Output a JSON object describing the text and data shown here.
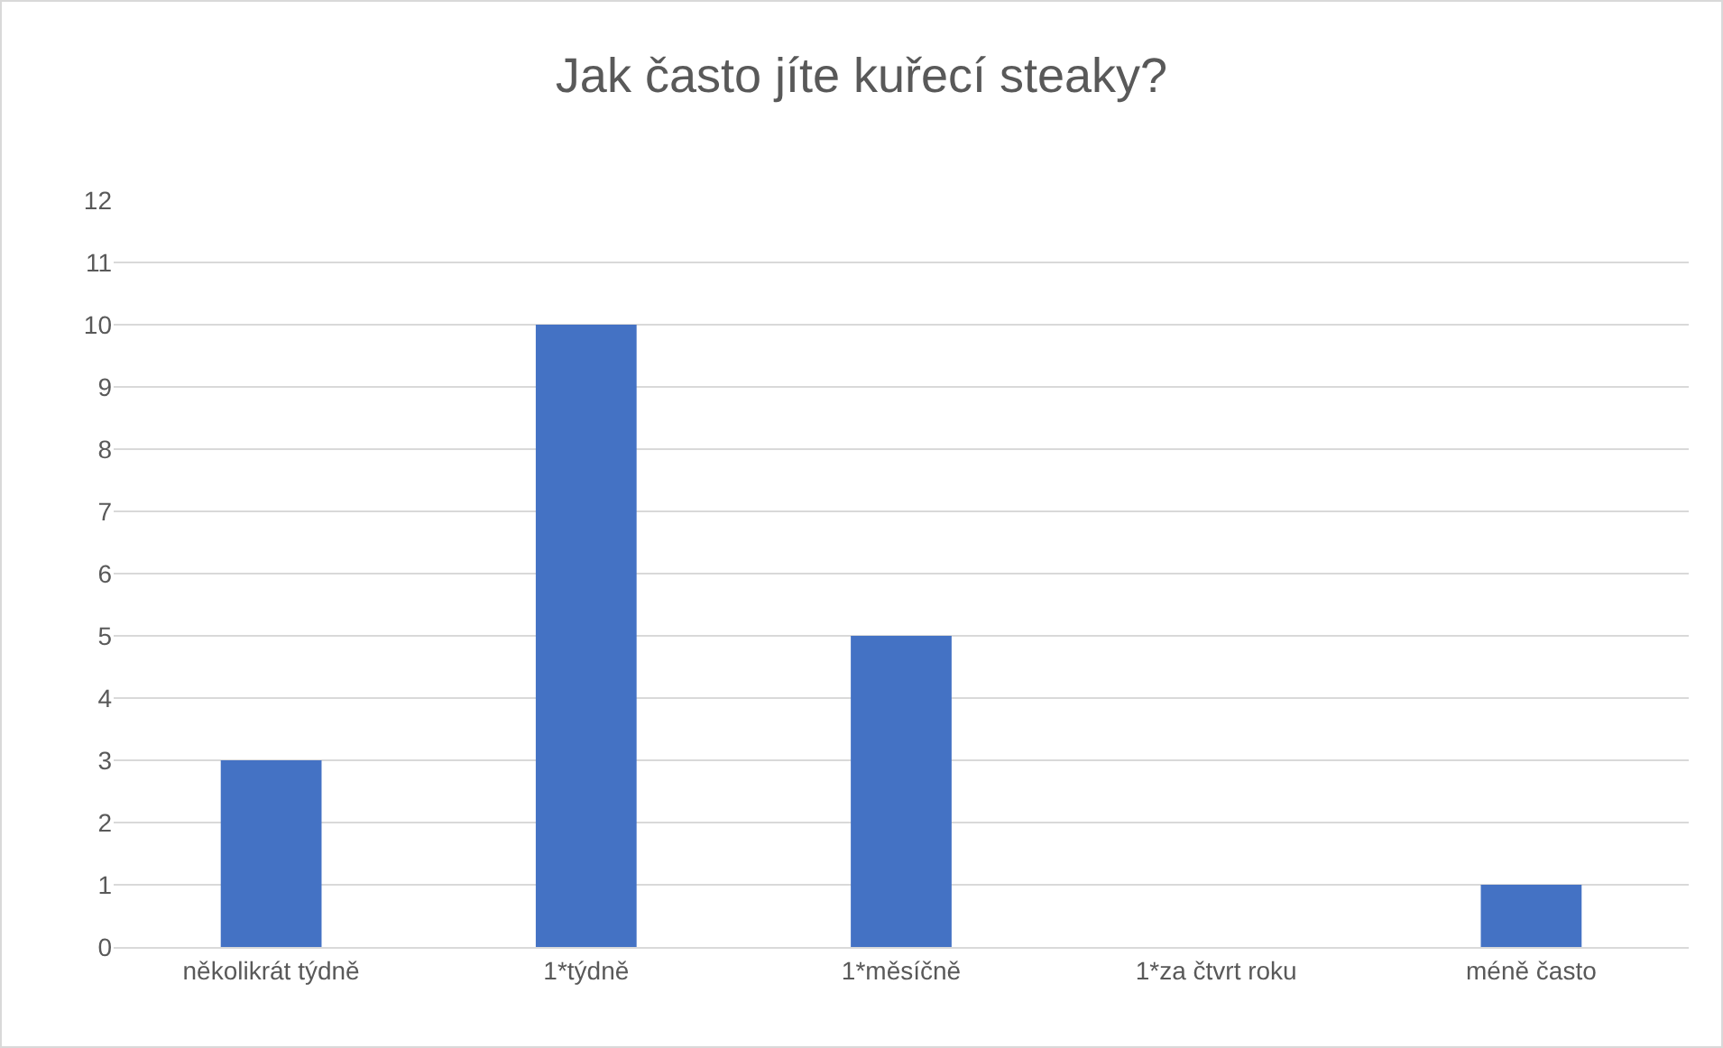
{
  "chart_data": {
    "type": "bar",
    "title": "Jak často jíte kuřecí steaky?",
    "categories": [
      "několikrát týdně",
      "1*týdně",
      "1*měsíčně",
      "1*za čtvrt roku",
      "méně často"
    ],
    "values": [
      3,
      10,
      5,
      0,
      1
    ],
    "color": "#4472c4",
    "ylim": [
      0,
      12
    ],
    "yticks": [
      0,
      1,
      2,
      3,
      4,
      5,
      6,
      7,
      8,
      9,
      10,
      11,
      12
    ],
    "grid": "y"
  }
}
